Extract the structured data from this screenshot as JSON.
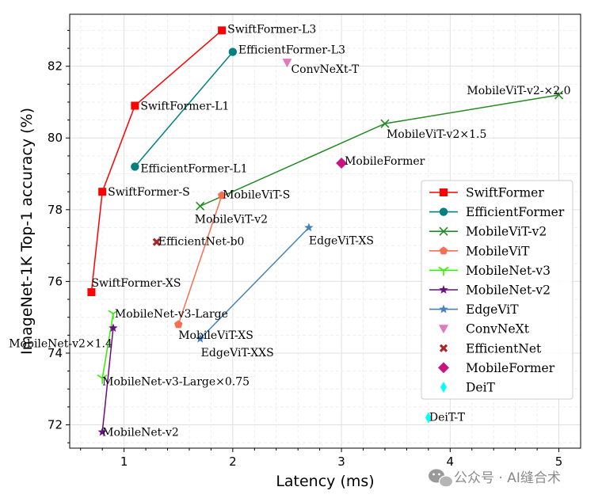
{
  "chart_data": {
    "type": "scatter",
    "xlabel": "Latency (ms)",
    "ylabel": "ImageNet-1K Top-1 accuracy (%)",
    "xlim": [
      0.5,
      5.2
    ],
    "ylim": [
      71.35,
      83.45
    ],
    "xticks": [
      1,
      2,
      3,
      4,
      5
    ],
    "yticks": [
      72,
      74,
      76,
      78,
      80,
      82
    ],
    "grid": true,
    "legend_position": "center-right",
    "series": [
      {
        "name": "SwiftFormer",
        "color": "#ff0000",
        "marker": "square",
        "connected": true,
        "points": [
          {
            "x": 0.7,
            "y": 75.7,
            "label": "SwiftFormer-XS"
          },
          {
            "x": 0.8,
            "y": 78.5,
            "label": "SwiftFormer-S"
          },
          {
            "x": 1.1,
            "y": 80.9,
            "label": "SwiftFormer-L1"
          },
          {
            "x": 1.9,
            "y": 83.0,
            "label": "SwiftFormer-L3"
          }
        ]
      },
      {
        "name": "EfficientFormer",
        "color": "#008080",
        "marker": "circle",
        "connected": true,
        "points": [
          {
            "x": 1.1,
            "y": 79.2,
            "label": "EfficientFormer-L1"
          },
          {
            "x": 2.0,
            "y": 82.4,
            "label": "EfficientFormer-L3"
          }
        ]
      },
      {
        "name": "MobileViT-v2",
        "color": "#228b22",
        "marker": "x",
        "connected": true,
        "points": [
          {
            "x": 1.7,
            "y": 78.1,
            "label": "MobileViT-v2"
          },
          {
            "x": 3.4,
            "y": 80.4,
            "label": "MobileViT-v2×1.5"
          },
          {
            "x": 5.0,
            "y": 81.2,
            "label": "MobileViT-v2-×2.0"
          }
        ]
      },
      {
        "name": "MobileViT",
        "color": "#fa6e4f",
        "marker": "pentagon",
        "connected": true,
        "points": [
          {
            "x": 1.5,
            "y": 74.8,
            "label": "MobileViT-XS"
          },
          {
            "x": 1.9,
            "y": 78.4,
            "label": "MobileViT-S"
          }
        ]
      },
      {
        "name": "MobileNet-v3",
        "color": "#33ee00",
        "marker": "tri",
        "connected": true,
        "points": [
          {
            "x": 0.8,
            "y": 73.3,
            "label": "MobileNet-v3-Large×0.75"
          },
          {
            "x": 0.9,
            "y": 75.1,
            "label": "MobileNet-v3-Large"
          }
        ]
      },
      {
        "name": "MobileNet-v2",
        "color": "#6a0d83",
        "marker": "star",
        "connected": true,
        "points": [
          {
            "x": 0.8,
            "y": 71.8,
            "label": "MobileNet-v2"
          },
          {
            "x": 0.9,
            "y": 74.7,
            "label": "MobileNet-v2×1.4"
          }
        ]
      },
      {
        "name": "EdgeViT",
        "color": "#4682b4",
        "marker": "star",
        "connected": true,
        "points": [
          {
            "x": 1.7,
            "y": 74.4,
            "label": "EdgeViT-XXS"
          },
          {
            "x": 2.7,
            "y": 77.5,
            "label": "EdgeViT-XS"
          }
        ]
      },
      {
        "name": "ConvNeXt",
        "color": "#e377c2",
        "marker": "triangle-down",
        "connected": false,
        "points": [
          {
            "x": 2.5,
            "y": 82.1,
            "label": "ConvNeXt-T"
          }
        ]
      },
      {
        "name": "EfficientNet",
        "color": "#a52a2a",
        "marker": "x-thick",
        "connected": false,
        "points": [
          {
            "x": 1.3,
            "y": 77.1,
            "label": "EfficientNet-b0"
          }
        ]
      },
      {
        "name": "MobileFormer",
        "color": "#c71585",
        "marker": "diamond",
        "connected": false,
        "points": [
          {
            "x": 3.0,
            "y": 79.3,
            "label": "MobileFormer"
          }
        ]
      },
      {
        "name": "DeiT",
        "color": "#00ffff",
        "marker": "thin-diamond",
        "connected": false,
        "points": [
          {
            "x": 3.8,
            "y": 72.2,
            "label": "DeiT-T"
          }
        ]
      }
    ]
  },
  "watermark": {
    "text": "公众号 · AI缝合术",
    "icon": "wechat-icon"
  }
}
